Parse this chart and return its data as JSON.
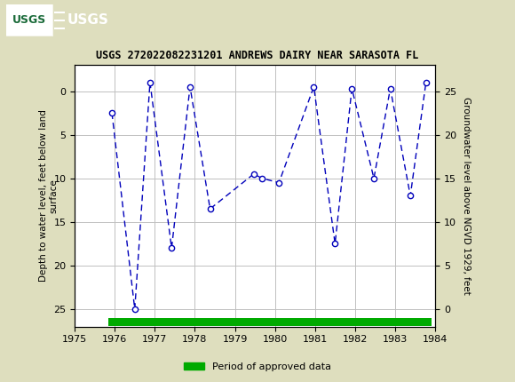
{
  "title": "USGS 272022082231201 ANDREWS DAIRY NEAR SARASOTA FL",
  "ylabel_left": "Depth to water level, feet below land\nsurface",
  "ylabel_right": "Groundwater level above NGVD 1929, feet",
  "xlim": [
    1975,
    1984
  ],
  "ylim_left_bottom": 27,
  "ylim_left_top": -3,
  "yticks_left": [
    0,
    5,
    10,
    15,
    20,
    25
  ],
  "yticks_right": [
    0,
    5,
    10,
    15,
    20,
    25
  ],
  "xticks": [
    1975,
    1976,
    1977,
    1978,
    1979,
    1980,
    1981,
    1982,
    1983,
    1984
  ],
  "x": [
    1975.93,
    1976.5,
    1976.88,
    1977.42,
    1977.88,
    1978.38,
    1979.47,
    1979.68,
    1980.1,
    1980.97,
    1981.5,
    1981.92,
    1982.47,
    1982.88,
    1983.38,
    1983.77
  ],
  "y_depth": [
    2.5,
    25.0,
    -1.0,
    18.0,
    -0.5,
    13.5,
    9.5,
    10.0,
    10.5,
    -0.5,
    17.5,
    -0.3,
    10.0,
    -0.3,
    12.0,
    -1.0
  ],
  "line_color": "#0000BB",
  "marker_color": "#0000BB",
  "marker_face": "#FFFFFF",
  "grid_color": "#C0C0C0",
  "bg_color": "#DEDEBE",
  "plot_bg": "#FFFFFF",
  "header_bg": "#1B6B3A",
  "header_text": "≡USGS",
  "header_text_color": "#FFFFFF",
  "legend_label": "Period of approved data",
  "legend_color": "#00AA00",
  "approved_x_start": 1975.85,
  "approved_x_end": 1983.92,
  "approved_y": 26.5,
  "approved_height": 0.9
}
